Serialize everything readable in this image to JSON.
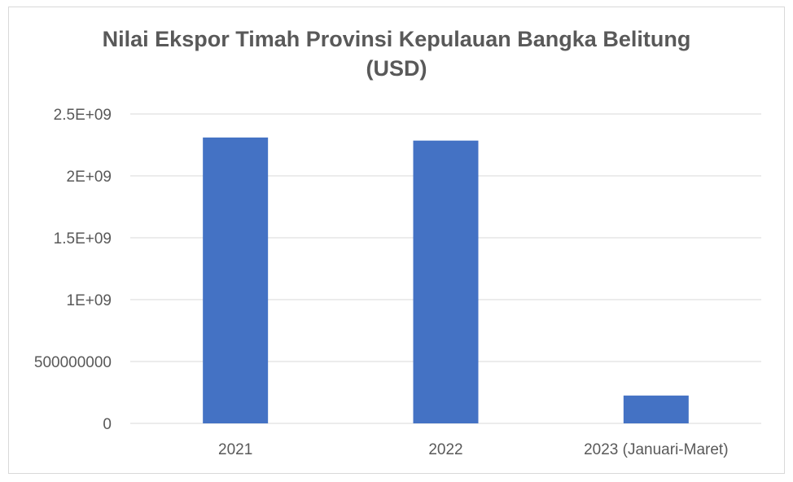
{
  "chart_data": {
    "type": "bar",
    "title_lines": [
      "Nilai Ekspor Timah Provinsi Kepulauan Bangka Belitung",
      "(USD)"
    ],
    "xlabel": "",
    "ylabel": "",
    "categories": [
      "2021",
      "2022",
      "2023 (Januari-Maret)"
    ],
    "values": [
      2310000000,
      2285000000,
      225000000
    ],
    "ylim": [
      0,
      2500000000
    ],
    "yticks": [
      0,
      500000000,
      1000000000,
      1500000000,
      2000000000,
      2500000000
    ],
    "ytick_labels": [
      "0",
      "500000000",
      "1E+09",
      "1.5E+09",
      "2E+09",
      "2.5E+09"
    ],
    "grid": true,
    "legend": false,
    "bar_color": "#4472c4",
    "grid_color": "#d9d9d9"
  }
}
